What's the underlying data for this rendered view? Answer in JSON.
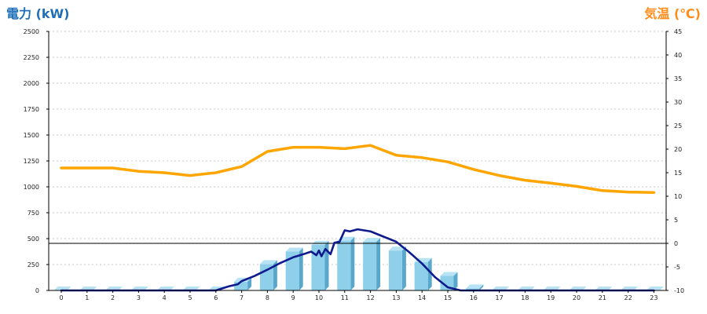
{
  "colors": {
    "title_left": "#1e6fb8",
    "title_right": "#ff8c1a",
    "bar_front": "#8ecfea",
    "bar_top": "#b8e3f5",
    "bar_side": "#5aa7cc",
    "power_line": "#0f1a8c",
    "temp_line": "#ffa500",
    "grid": "#c8c8c8",
    "zero_line": "#000000"
  },
  "chart_data": {
    "type": "bar",
    "title_left": "電力 (kW)",
    "title_right": "気温 (℃)",
    "x": [
      "0",
      "1",
      "2",
      "3",
      "4",
      "5",
      "6",
      "7",
      "8",
      "9",
      "10",
      "11",
      "12",
      "13",
      "14",
      "15",
      "16",
      "17",
      "18",
      "19",
      "20",
      "21",
      "22",
      "23"
    ],
    "ylim_left": [
      0,
      2500
    ],
    "yticks_left": [
      "0",
      "250",
      "500",
      "750",
      "1000",
      "1250",
      "1500",
      "1750",
      "2000",
      "2250",
      "2500"
    ],
    "ylim_right": [
      -10,
      45
    ],
    "yticks_right": [
      "-10",
      "-5",
      "0",
      "5",
      "10",
      "15",
      "20",
      "25",
      "30",
      "35",
      "40",
      "45"
    ],
    "grid": true,
    "series": [
      {
        "kind": "bar",
        "axis": "left",
        "values": [
          0,
          0,
          0,
          0,
          0,
          0,
          0,
          85,
          255,
          375,
          440,
          480,
          470,
          385,
          275,
          140,
          20,
          0,
          0,
          0,
          0,
          0,
          0,
          0
        ]
      },
      {
        "kind": "line",
        "axis": "left",
        "points": [
          [
            0,
            0
          ],
          [
            1,
            0
          ],
          [
            2,
            0
          ],
          [
            3,
            0
          ],
          [
            4,
            0
          ],
          [
            5,
            0
          ],
          [
            6,
            0
          ],
          [
            6.5,
            40
          ],
          [
            6.85,
            60
          ],
          [
            7,
            90
          ],
          [
            7.5,
            140
          ],
          [
            8,
            200
          ],
          [
            8.5,
            265
          ],
          [
            9,
            320
          ],
          [
            9.4,
            350
          ],
          [
            9.7,
            375
          ],
          [
            9.9,
            340
          ],
          [
            10,
            385
          ],
          [
            10.1,
            330
          ],
          [
            10.25,
            400
          ],
          [
            10.45,
            350
          ],
          [
            10.6,
            460
          ],
          [
            10.8,
            470
          ],
          [
            11,
            580
          ],
          [
            11.2,
            570
          ],
          [
            11.5,
            590
          ],
          [
            12,
            570
          ],
          [
            12.5,
            520
          ],
          [
            13,
            470
          ],
          [
            13.5,
            370
          ],
          [
            14,
            260
          ],
          [
            14.5,
            130
          ],
          [
            15,
            30
          ],
          [
            15.5,
            0
          ],
          [
            16,
            0
          ],
          [
            17,
            0
          ],
          [
            18,
            0
          ],
          [
            19,
            0
          ],
          [
            20,
            0
          ],
          [
            21,
            0
          ],
          [
            22,
            0
          ],
          [
            23,
            0
          ]
        ]
      },
      {
        "kind": "line",
        "axis": "right",
        "values": [
          16,
          16,
          16,
          15.3,
          15,
          14.4,
          15,
          16.3,
          19.5,
          20.4,
          20.4,
          20.1,
          20.8,
          18.7,
          18.2,
          17.3,
          15.7,
          14.4,
          13.4,
          12.8,
          12.1,
          11.2,
          10.9,
          10.8
        ]
      }
    ],
    "reference_line": {
      "axis": "right",
      "value": 0
    }
  }
}
